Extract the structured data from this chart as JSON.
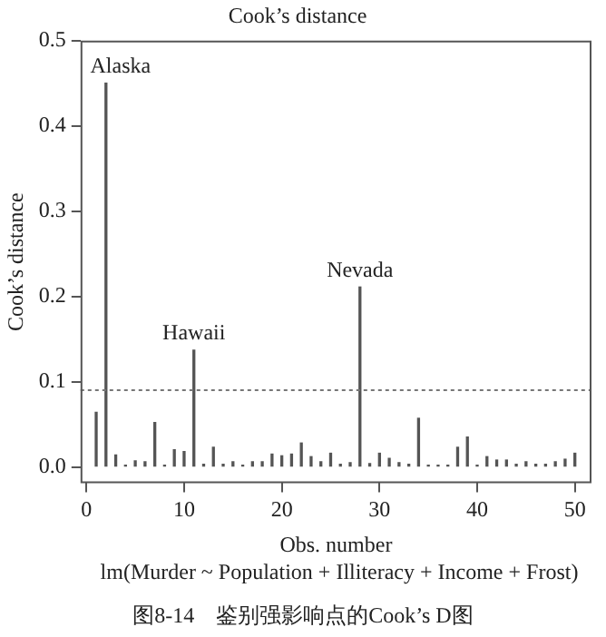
{
  "chart_data": {
    "type": "bar",
    "title": "Cook’s distance",
    "xlabel": "Obs. number",
    "ylabel": "Cook’s distance",
    "x": [
      1,
      2,
      3,
      4,
      5,
      6,
      7,
      8,
      9,
      10,
      11,
      12,
      13,
      14,
      15,
      16,
      17,
      18,
      19,
      20,
      21,
      22,
      23,
      24,
      25,
      26,
      27,
      28,
      29,
      30,
      31,
      32,
      33,
      34,
      35,
      36,
      37,
      38,
      39,
      40,
      41,
      42,
      43,
      44,
      45,
      46,
      47,
      48,
      49,
      50
    ],
    "values": [
      0.064,
      0.45,
      0.014,
      0.002,
      0.007,
      0.006,
      0.052,
      0.002,
      0.02,
      0.018,
      0.137,
      0.003,
      0.023,
      0.003,
      0.006,
      0.002,
      0.006,
      0.006,
      0.015,
      0.013,
      0.015,
      0.028,
      0.012,
      0.006,
      0.016,
      0.003,
      0.005,
      0.211,
      0.004,
      0.016,
      0.01,
      0.005,
      0.003,
      0.057,
      0.002,
      0.002,
      0.002,
      0.023,
      0.035,
      0.002,
      0.012,
      0.008,
      0.008,
      0.003,
      0.006,
      0.003,
      0.003,
      0.006,
      0.009,
      0.016
    ],
    "color": "#555555",
    "xlim": [
      -0.6,
      51.7
    ],
    "xticks": [
      0,
      10,
      20,
      30,
      40,
      50
    ],
    "ylim": [
      -0.019,
      0.5
    ],
    "yticks": [
      {
        "value": 0,
        "label": "0.0"
      },
      {
        "value": 0.1,
        "label": "0.1"
      },
      {
        "value": 0.2,
        "label": "0.2"
      },
      {
        "value": 0.3,
        "label": "0.3"
      },
      {
        "value": 0.4,
        "label": "0.4"
      },
      {
        "value": 0.5,
        "label": "0.5"
      }
    ],
    "ref_lines": [
      {
        "axis": "y",
        "value": 0.09,
        "color": "#777777",
        "line_style": "dotted"
      }
    ],
    "annotations": [
      {
        "text": "Alaska",
        "x": 2,
        "y": 0.45
      },
      {
        "text": "Hawaii",
        "x": 11,
        "y": 0.137
      },
      {
        "text": "Nevada",
        "x": 28,
        "y": 0.211
      },
      "lm(Murder ~ Population + Illiteracy + Income + Frost)",
      "图8-14　鉴别强影响点的Cook’s D图"
    ],
    "grid": false,
    "legend": false
  }
}
